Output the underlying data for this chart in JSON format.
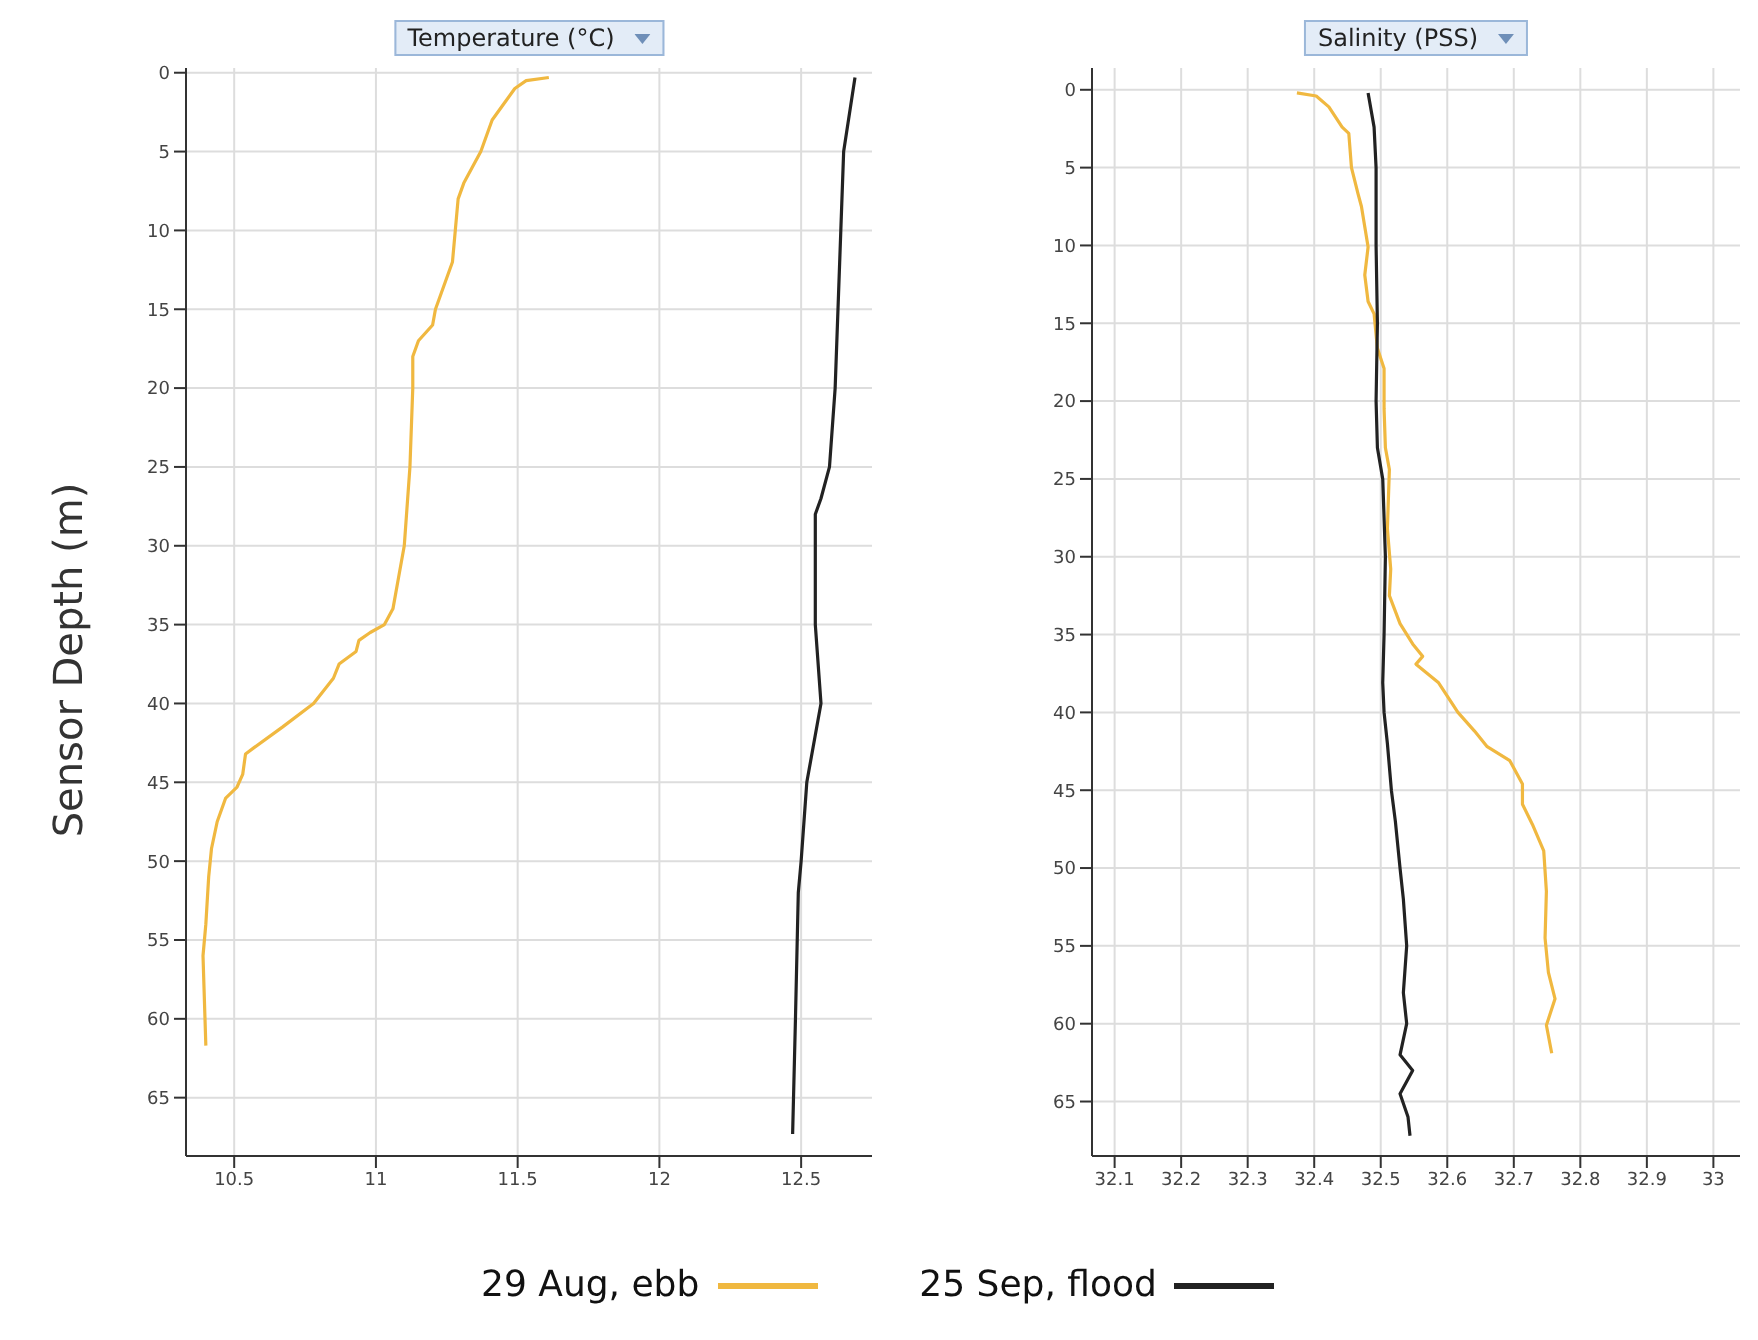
{
  "chart_data": [
    {
      "type": "line",
      "title": "Temperature (°C)",
      "ylabel": "Sensor Depth (m)",
      "xlim": [
        10.33,
        12.75
      ],
      "xticks": [
        10.5,
        11,
        11.5,
        12,
        12.5
      ],
      "ylim": [
        68.7,
        -0.3
      ],
      "yticks": [
        0,
        5,
        10,
        15,
        20,
        25,
        30,
        35,
        40,
        45,
        50,
        55,
        60,
        65
      ],
      "grid": true,
      "legend": "bottom",
      "line_style": "solid",
      "marker": "none",
      "series": [
        {
          "name": "29 Aug, ebb",
          "color": "#f0b840",
          "x": [
            11.61,
            11.53,
            11.49,
            11.45,
            11.41,
            11.39,
            11.37,
            11.34,
            11.31,
            11.29,
            11.28,
            11.27,
            11.23,
            11.21,
            11.2,
            11.15,
            11.13,
            11.13,
            11.12,
            11.1,
            11.08,
            11.06,
            11.03,
            10.98,
            10.94,
            10.93,
            10.87,
            10.85,
            10.78,
            10.67,
            10.57,
            10.54,
            10.53,
            10.51,
            10.47,
            10.44,
            10.42,
            10.41,
            10.4,
            10.39,
            10.4
          ],
          "values": [
            0.3,
            0.5,
            1,
            2,
            3,
            4,
            5,
            6,
            7,
            8,
            10,
            12,
            14,
            15,
            16,
            17,
            18,
            20,
            25,
            30,
            32,
            34,
            35,
            35.5,
            36,
            36.7,
            37.5,
            38.4,
            40,
            41.5,
            42.8,
            43.2,
            44.5,
            45.3,
            46,
            47.5,
            49.2,
            51,
            54,
            56,
            61.7
          ]
        },
        {
          "name": "25 Sep, flood",
          "color": "#222222",
          "x": [
            12.69,
            12.65,
            12.64,
            12.62,
            12.6,
            12.57,
            12.55,
            12.55,
            12.57,
            12.55,
            12.52,
            12.5,
            12.49,
            12.48,
            12.47
          ],
          "values": [
            0.3,
            5,
            10,
            20,
            25,
            27,
            28,
            35,
            40,
            42,
            45,
            50,
            52,
            60,
            67.3
          ]
        }
      ]
    },
    {
      "type": "line",
      "title": "Salinity (PSS)",
      "xlim": [
        32.066,
        33.04
      ],
      "xticks": [
        32.1,
        32.2,
        32.3,
        32.4,
        32.5,
        32.6,
        32.7,
        32.8,
        32.9,
        33
      ],
      "ylim": [
        68.5,
        -1.4
      ],
      "yticks": [
        0,
        5,
        10,
        15,
        20,
        25,
        30,
        35,
        40,
        45,
        50,
        55,
        60,
        65
      ],
      "grid": true,
      "line_style": "solid",
      "marker": "none",
      "series": [
        {
          "color": "#f0b840",
          "x": [
            32.374,
            32.403,
            32.422,
            32.442,
            32.452,
            32.456,
            32.466,
            32.471,
            32.476,
            32.481,
            32.476,
            32.481,
            32.49,
            32.495,
            32.505,
            32.505,
            32.507,
            32.513,
            32.51,
            32.515,
            32.513,
            32.529,
            32.548,
            32.563,
            32.553,
            32.587,
            32.616,
            32.641,
            32.66,
            32.694,
            32.713,
            32.713,
            32.728,
            32.745,
            32.749,
            32.747,
            32.752,
            32.762,
            32.749,
            32.757
          ],
          "values": [
            0.2,
            0.4,
            1.1,
            2.4,
            2.8,
            5,
            6.7,
            7.5,
            8.8,
            10.1,
            11.9,
            13.6,
            14.4,
            16.6,
            17.9,
            20.5,
            23,
            24.4,
            28.2,
            30.8,
            32.5,
            34.3,
            35.6,
            36.4,
            36.9,
            38.1,
            40,
            41.2,
            42.2,
            43.1,
            44.6,
            45.9,
            47.2,
            48.9,
            51.5,
            54.5,
            56.7,
            58.4,
            60.1,
            61.9
          ]
        },
        {
          "color": "#222222",
          "x": [
            32.481,
            32.49,
            32.493,
            32.493,
            32.495,
            32.493,
            32.495,
            32.503,
            32.507,
            32.505,
            32.503,
            32.505,
            32.51,
            32.516,
            32.522,
            32.529,
            32.534,
            32.539,
            32.534,
            32.539,
            32.529,
            32.548,
            32.529,
            32.541,
            32.544
          ],
          "values": [
            0.2,
            2.4,
            5,
            10,
            15,
            20,
            23,
            25,
            30,
            35,
            38.1,
            40,
            42,
            45,
            47,
            50,
            52,
            55,
            58,
            60,
            62,
            63,
            64.5,
            66,
            67.2
          ]
        }
      ]
    }
  ]
}
